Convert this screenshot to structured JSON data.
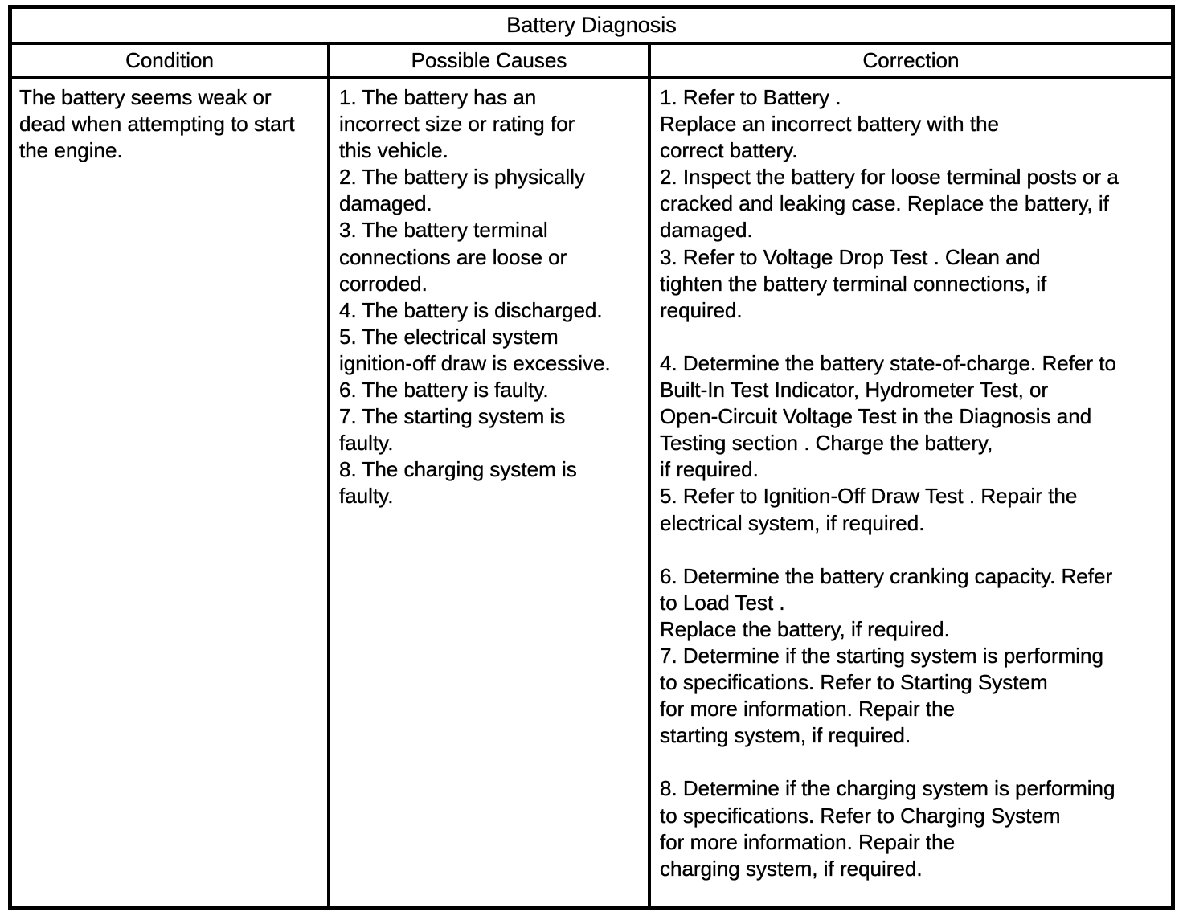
{
  "table": {
    "title": "Battery Diagnosis",
    "headers": [
      "Condition",
      "Possible Causes",
      "Correction"
    ],
    "row": {
      "condition_lines": [
        "The battery seems weak or",
        "dead when attempting to start",
        "the engine."
      ],
      "possible_causes_lines": [
        "1. The battery has an",
        "incorrect size or rating for",
        "this vehicle.",
        "2. The battery is physically",
        "damaged.",
        "3. The battery terminal",
        "connections are loose or",
        "corroded.",
        "4. The battery is discharged.",
        "5. The electrical system",
        "ignition-off draw is excessive.",
        "6. The battery is faulty.",
        "7. The starting system is",
        "faulty.",
        "8. The charging system is",
        "faulty."
      ],
      "correction_lines": [
        "1. Refer to Battery .",
        "Replace an incorrect battery with the",
        "correct battery.",
        "2. Inspect the battery for loose terminal posts or a",
        "cracked and leaking case. Replace the battery, if",
        "damaged.",
        "3. Refer to Voltage Drop Test . Clean and",
        "tighten the battery terminal connections, if",
        "required.",
        "",
        "4. Determine the battery state-of-charge. Refer to",
        "Built-In Test Indicator, Hydrometer Test, or",
        "Open-Circuit Voltage Test in the Diagnosis and",
        "Testing section . Charge the battery,",
        "if required.",
        "5. Refer to Ignition-Off Draw Test . Repair the",
        "electrical system, if required.",
        "",
        "6. Determine the battery cranking capacity. Refer",
        "to Load Test .",
        "Replace the battery, if required.",
        "7. Determine if the starting system is performing",
        "to specifications. Refer to Starting System",
        "for more information. Repair the",
        "starting system, if required.",
        "",
        "8. Determine if the charging system is performing",
        "to specifications. Refer to Charging System",
        "for more information. Repair the",
        "charging system, if required."
      ]
    }
  },
  "colors": {
    "ink": "#000000",
    "paper": "#ffffff"
  }
}
